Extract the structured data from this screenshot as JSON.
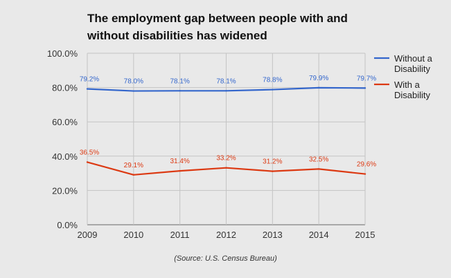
{
  "chart_data": {
    "type": "line",
    "title": "The employment gap between people with and without disabilities has widened",
    "source": "(Source: U.S. Census Bureau)",
    "x": [
      "2009",
      "2010",
      "2011",
      "2012",
      "2013",
      "2014",
      "2015"
    ],
    "ylim": [
      0,
      100
    ],
    "yticks": [
      "0.0%",
      "20.0%",
      "40.0%",
      "60.0%",
      "80.0%",
      "100.0%"
    ],
    "grid": true,
    "legend_position": "right",
    "series": [
      {
        "name_lines": [
          "Without a",
          "Disability"
        ],
        "color": "#3366cc",
        "values": [
          79.2,
          78.0,
          78.1,
          78.1,
          78.8,
          79.9,
          79.7
        ],
        "labels": [
          "79.2%",
          "78.0%",
          "78.1%",
          "78.1%",
          "78.8%",
          "79.9%",
          "79.7%"
        ]
      },
      {
        "name_lines": [
          "With a",
          "Disability"
        ],
        "color": "#dc3912",
        "values": [
          36.5,
          29.1,
          31.4,
          33.2,
          31.2,
          32.5,
          29.6
        ],
        "labels": [
          "36.5%",
          "29.1%",
          "31.4%",
          "33.2%",
          "31.2%",
          "32.5%",
          "29.6%"
        ]
      }
    ]
  }
}
